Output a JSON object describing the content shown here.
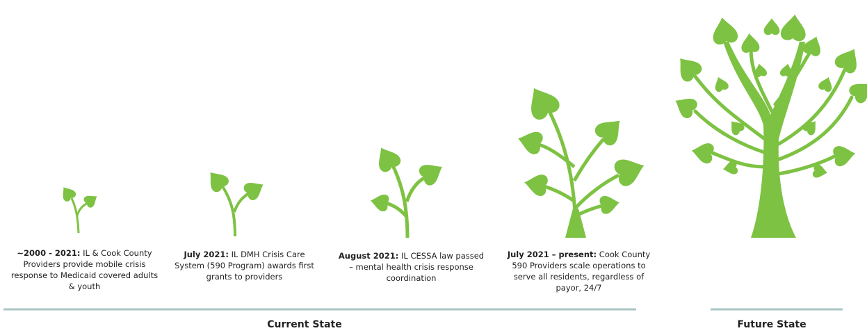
{
  "stages": [
    {
      "date": "~2000 - 2021:",
      "text": "IL & Cook County Providers provide mobile crisis response to Medicaid covered adults & youth"
    },
    {
      "date": "July 2021:",
      "text": "IL DMH Crisis Care System (590 Program) awards first grants to providers"
    },
    {
      "date": "August 2021:",
      "text": "IL CESSA law passed – mental health crisis response coordination"
    },
    {
      "date": "July 2021 – present:",
      "text": "Cook County 590 Providers scale operations to serve all residents, regardless of payor, 24/7"
    }
  ],
  "sections": {
    "current": "Current State",
    "future": "Future State"
  }
}
